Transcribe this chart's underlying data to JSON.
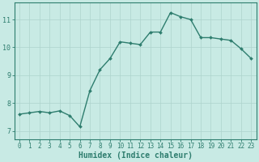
{
  "x": [
    0,
    1,
    2,
    3,
    4,
    5,
    6,
    7,
    8,
    9,
    10,
    11,
    12,
    13,
    14,
    15,
    16,
    17,
    18,
    19,
    20,
    21,
    22,
    23
  ],
  "y": [
    7.6,
    7.65,
    7.7,
    7.65,
    7.72,
    7.55,
    7.15,
    8.45,
    9.2,
    9.6,
    10.2,
    10.15,
    10.1,
    10.55,
    10.55,
    11.25,
    11.1,
    11.0,
    10.35,
    10.35,
    10.3,
    10.25,
    9.95,
    9.6
  ],
  "line_color": "#2e7d6e",
  "marker": "D",
  "marker_size": 2.0,
  "bg_color": "#c8eae4",
  "grid_color": "#aed4cc",
  "axis_color": "#2e7d6e",
  "tick_color": "#2e7d6e",
  "xlabel": "Humidex (Indice chaleur)",
  "xlabel_fontsize": 7,
  "ylabel_ticks": [
    7,
    8,
    9,
    10,
    11
  ],
  "xlim": [
    -0.5,
    23.5
  ],
  "ylim": [
    6.7,
    11.6
  ],
  "xticks": [
    0,
    1,
    2,
    3,
    4,
    5,
    6,
    7,
    8,
    9,
    10,
    11,
    12,
    13,
    14,
    15,
    16,
    17,
    18,
    19,
    20,
    21,
    22,
    23
  ],
  "line_width": 1.0,
  "tick_fontsize": 5.5
}
